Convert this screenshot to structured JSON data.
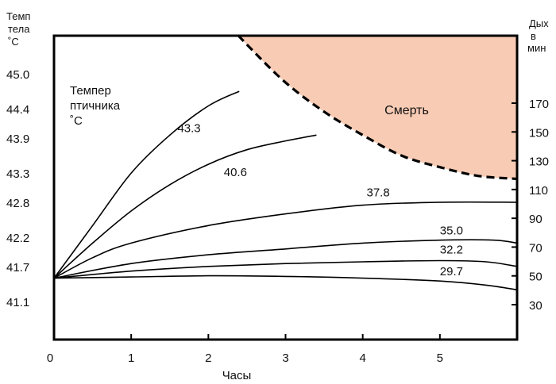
{
  "chart_data": {
    "type": "line",
    "xlabel": "Часы",
    "ylabel_left": [
      "Темп",
      "тела",
      "˚C"
    ],
    "ylabel_right": [
      "Дых",
      "в",
      "мин"
    ],
    "inner_label": [
      "Темпер",
      "птичника",
      "˚C"
    ],
    "death_label": "Смерть",
    "xlim": [
      0,
      6
    ],
    "x_ticks": [
      0,
      1,
      2,
      3,
      4,
      5
    ],
    "y_left_ticks": [
      "45.0",
      "44.4",
      "43.9",
      "43.3",
      "42.8",
      "42.2",
      "41.7",
      "41.1"
    ],
    "y_right_ticks": [
      "170",
      "150",
      "130",
      "110",
      "90",
      "70",
      "50",
      "30"
    ],
    "y_right_range": [
      30,
      170
    ],
    "series": [
      {
        "name": "43.3",
        "points": [
          [
            0,
            41.5
          ],
          [
            0.5,
            42.4
          ],
          [
            1.0,
            43.3
          ],
          [
            1.5,
            43.95
          ],
          [
            2.0,
            44.45
          ],
          [
            2.4,
            44.7
          ]
        ]
      },
      {
        "name": "40.6",
        "points": [
          [
            0,
            41.5
          ],
          [
            0.5,
            42.1
          ],
          [
            1.0,
            42.65
          ],
          [
            1.5,
            43.1
          ],
          [
            2.0,
            43.45
          ],
          [
            2.5,
            43.7
          ],
          [
            3.0,
            43.85
          ],
          [
            3.4,
            43.95
          ]
        ]
      },
      {
        "name": "37.8",
        "points": [
          [
            0,
            41.5
          ],
          [
            0.5,
            41.85
          ],
          [
            1.0,
            42.1
          ],
          [
            2.0,
            42.4
          ],
          [
            3.0,
            42.6
          ],
          [
            4.0,
            42.75
          ],
          [
            5.0,
            42.8
          ],
          [
            6.0,
            42.8
          ]
        ]
      },
      {
        "name": "35.0",
        "points": [
          [
            0,
            41.5
          ],
          [
            1.0,
            41.75
          ],
          [
            2.0,
            41.9
          ],
          [
            3.0,
            42.0
          ],
          [
            4.0,
            42.1
          ],
          [
            5.0,
            42.15
          ],
          [
            5.7,
            42.15
          ],
          [
            6.0,
            42.1
          ]
        ]
      },
      {
        "name": "32.2",
        "points": [
          [
            0,
            41.5
          ],
          [
            1.0,
            41.62
          ],
          [
            2.0,
            41.7
          ],
          [
            3.0,
            41.75
          ],
          [
            4.0,
            41.78
          ],
          [
            5.0,
            41.8
          ],
          [
            5.6,
            41.78
          ],
          [
            6.0,
            41.7
          ]
        ]
      },
      {
        "name": "29.7",
        "points": [
          [
            0,
            41.5
          ],
          [
            1.0,
            41.52
          ],
          [
            2.0,
            41.54
          ],
          [
            3.0,
            41.53
          ],
          [
            4.0,
            41.5
          ],
          [
            5.0,
            41.45
          ],
          [
            5.6,
            41.38
          ],
          [
            6.0,
            41.3
          ]
        ]
      }
    ],
    "death_boundary": [
      [
        1.7,
        46.6
      ],
      [
        2.0,
        46.2
      ],
      [
        2.5,
        45.5
      ],
      [
        3.0,
        44.85
      ],
      [
        3.5,
        44.35
      ],
      [
        4.0,
        43.95
      ],
      [
        4.5,
        43.6
      ],
      [
        5.0,
        43.4
      ],
      [
        5.5,
        43.25
      ],
      [
        6.0,
        43.2
      ]
    ],
    "colors": {
      "death_zone": "#f8cbb4",
      "line": "#000000",
      "axis": "#000000"
    }
  }
}
